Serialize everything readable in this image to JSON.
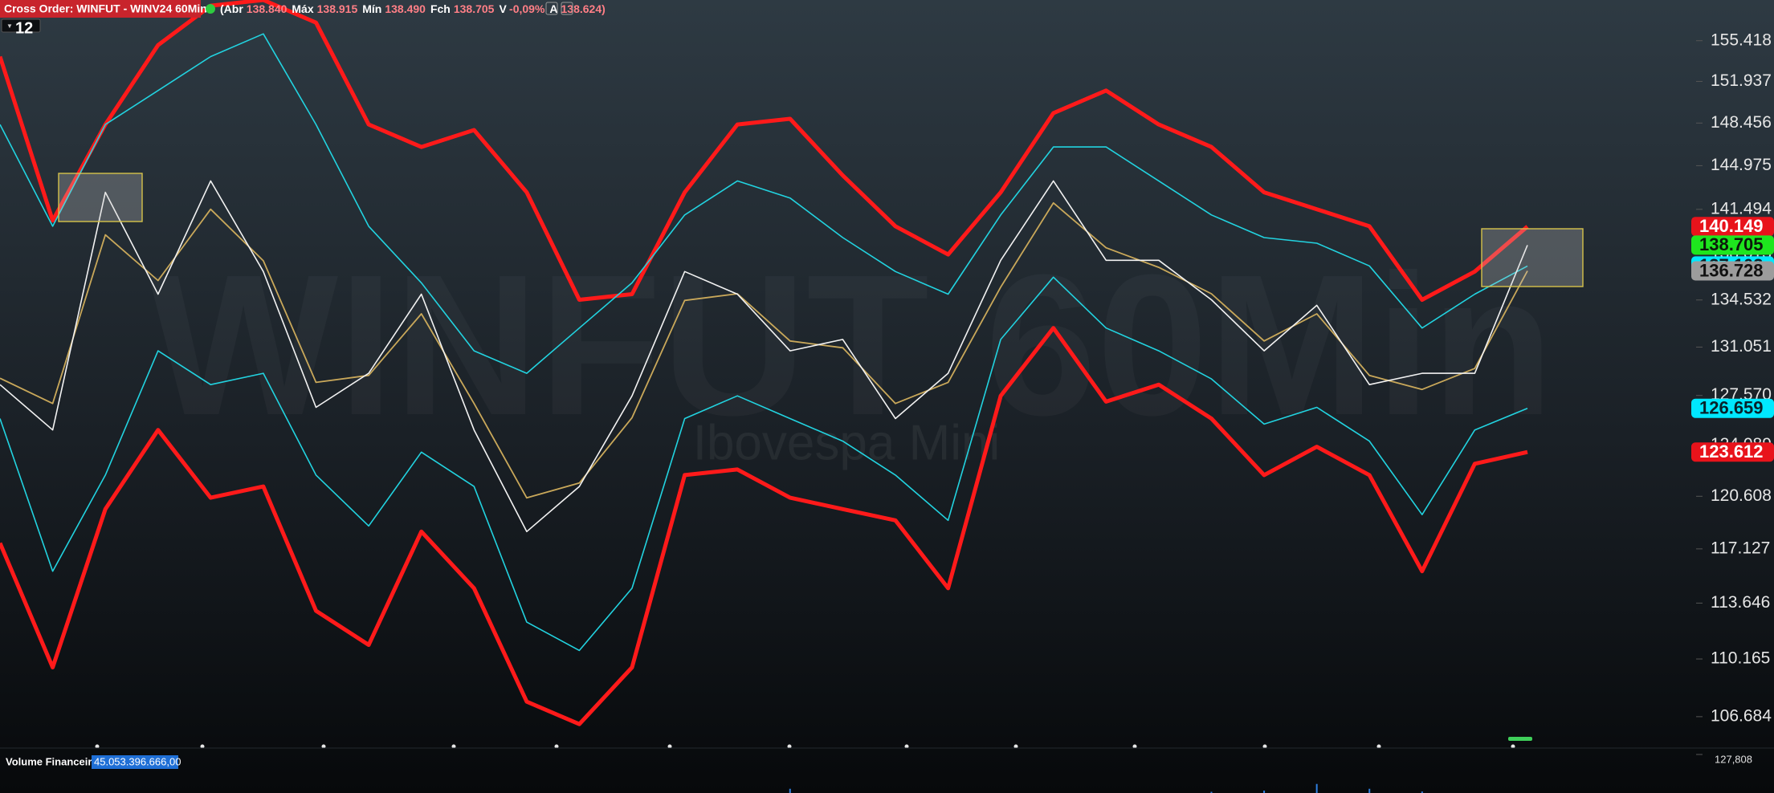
{
  "chart_data": {
    "type": "line",
    "title": "Cross Order: WINFUT - WINV24 60Min",
    "period_badge": "12",
    "quote": [
      {
        "label": "(Abr",
        "value": "138.840"
      },
      {
        "label": "Máx",
        "value": "138.915"
      },
      {
        "label": "Mín",
        "value": "138.490"
      },
      {
        "label": "Fch",
        "value": "138.705"
      },
      {
        "label": "V",
        "value": "-0,09%"
      },
      {
        "label": "A",
        "value": "138.624)"
      }
    ],
    "watermark": "WINFUT 60Min",
    "subtitle": "Ibovespa Mini",
    "log_scale": true,
    "ylim": [
      104.93,
      158.98
    ],
    "yticks": [
      155.418,
      151.937,
      148.456,
      144.975,
      141.494,
      138.013,
      134.532,
      131.051,
      {
        "value": 127.57,
        "label": "127.570"
      },
      124.089,
      120.608,
      117.127,
      113.646,
      110.165,
      106.684
    ],
    "categories": [
      null,
      null,
      null,
      null,
      null,
      null,
      null,
      null,
      null,
      null,
      null,
      null,
      null,
      null,
      null,
      null,
      null,
      null,
      null,
      null,
      null,
      null,
      null,
      null,
      null,
      null,
      null,
      null,
      null,
      null
    ],
    "series": [
      {
        "color": "#ff1a1a",
        "width": 5,
        "label_bg": "#e8131b",
        "label_text": "#ffffff",
        "values": [
          154.05,
          140.61,
          148.34,
          155.03,
          158.48,
          158.98,
          156.99,
          148.34,
          146.49,
          147.88,
          142.84,
          134.55,
          134.97,
          142.84,
          148.34,
          148.81,
          144.19,
          140.17,
          137.98,
          142.84,
          149.28,
          151.17,
          148.34,
          146.49,
          142.84,
          141.5,
          140.17,
          134.55,
          136.68,
          140.149
        ]
      },
      {
        "color": "#ff1a1a",
        "width": 5,
        "label_bg": "#e8131b",
        "label_text": "#ffffff",
        "values": [
          117.51,
          109.65,
          119.75,
          125.14,
          120.51,
          121.27,
          113.16,
          111.03,
          118.26,
          114.59,
          107.58,
          106.24,
          109.65,
          122.04,
          122.42,
          120.51,
          119.75,
          119.0,
          114.59,
          127.54,
          132.45,
          127.13,
          128.34,
          125.94,
          122.04,
          123.98,
          122.04,
          115.68,
          122.81,
          123.612
        ]
      },
      {
        "color": "#22d3e0",
        "width": 1.6,
        "label_bg": "#00e8ff",
        "label_text": "#08222a",
        "values": [
          148.34,
          140.17,
          148.34,
          151.17,
          154.05,
          156.01,
          148.34,
          140.17,
          135.82,
          130.78,
          129.15,
          132.45,
          135.82,
          141.05,
          143.75,
          142.39,
          139.29,
          136.68,
          134.97,
          141.05,
          146.49,
          146.49,
          143.75,
          141.05,
          139.29,
          138.85,
          137.11,
          132.45,
          134.97,
          137.103
        ]
      },
      {
        "color": "#22d3e0",
        "width": 1.6,
        "label_bg": "#00e8ff",
        "label_text": "#08222a",
        "values": [
          125.94,
          115.68,
          122.04,
          130.78,
          128.34,
          129.15,
          122.04,
          118.63,
          123.61,
          121.27,
          112.45,
          110.69,
          114.59,
          125.94,
          127.54,
          125.94,
          124.37,
          122.04,
          119.0,
          131.61,
          136.25,
          132.45,
          130.78,
          128.75,
          125.55,
          126.73,
          124.37,
          119.38,
          125.14,
          126.659
        ]
      },
      {
        "color": "#c9a85a",
        "width": 1.8,
        "label_bg": "#9c9c9c",
        "label_text": "#111111",
        "values": [
          128.8,
          127.0,
          139.5,
          136.0,
          141.5,
          137.5,
          128.5,
          129.0,
          133.5,
          127.0,
          120.5,
          121.5,
          126.0,
          134.5,
          135.0,
          131.5,
          131.0,
          127.0,
          128.5,
          135.5,
          142.0,
          138.5,
          137.0,
          135.0,
          131.5,
          133.5,
          129.0,
          128.0,
          129.5,
          136.728
        ]
      },
      {
        "color": "#f2f2f2",
        "width": 1.6,
        "label_bg": "#1ee61e",
        "label_text": "#0b1a0b",
        "values": [
          128.34,
          125.14,
          142.84,
          134.97,
          143.75,
          136.68,
          126.73,
          129.15,
          134.97,
          125.14,
          118.26,
          121.27,
          127.54,
          136.68,
          134.97,
          130.78,
          131.61,
          125.94,
          129.15,
          137.54,
          143.75,
          137.54,
          137.54,
          134.55,
          130.78,
          134.13,
          128.34,
          129.15,
          129.15,
          138.705
        ]
      }
    ],
    "volume": {
      "label": "Volume Financeiro",
      "total": "45.053.396.666,00",
      "color": "#2f7fe0",
      "ylim": [
        0,
        127808
      ],
      "yticks": [
        {
          "value": 127808,
          "label": "127,808"
        }
      ],
      "values": [
        0,
        0,
        0,
        0,
        0,
        0,
        0,
        0,
        0,
        0,
        0,
        0,
        0,
        0,
        0,
        14000,
        0,
        0,
        0,
        0,
        0,
        0,
        0,
        4000,
        8000,
        30000,
        14000,
        5000,
        0,
        0
      ]
    }
  }
}
